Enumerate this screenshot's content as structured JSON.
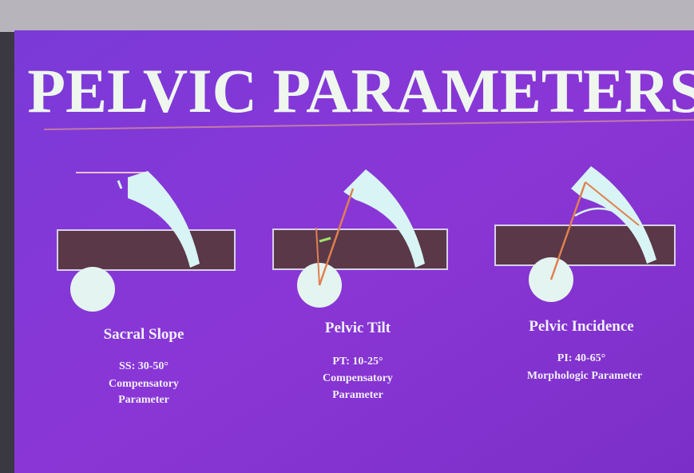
{
  "title": "PELVIC PARAMETERS",
  "panels": [
    {
      "name": "Sacral Slope",
      "range": "SS: 30-50°",
      "description": [
        "Compensatory",
        "Parameter"
      ]
    },
    {
      "name": "Pelvic Tilt",
      "range": "PT: 10-25°",
      "description": [
        "Compensatory",
        "Parameter"
      ]
    },
    {
      "name": "Pelvic Incidence",
      "range": "PI: 40-65°",
      "description": [
        "Morphologic Parameter"
      ]
    }
  ]
}
